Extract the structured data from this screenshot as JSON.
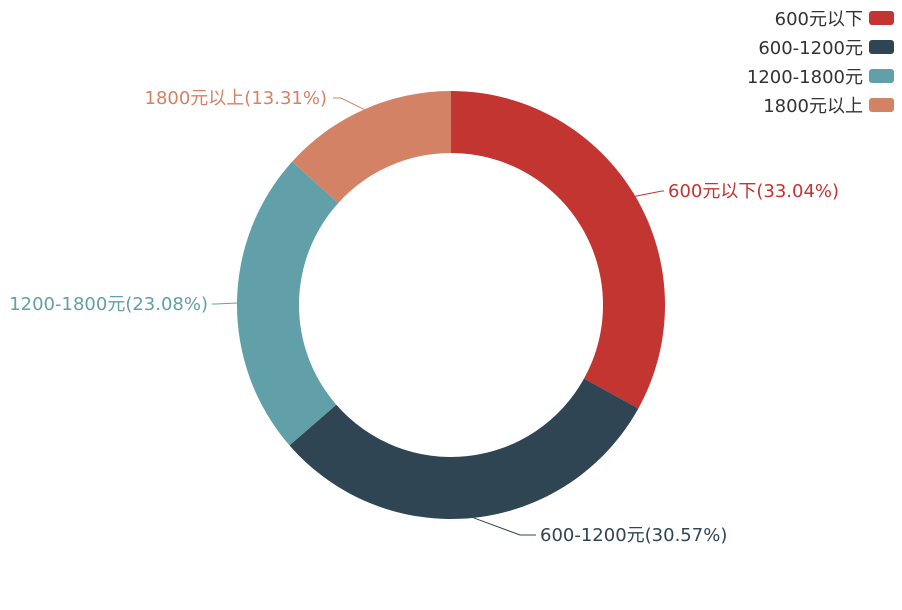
{
  "chart_data": {
    "type": "pie",
    "donut": true,
    "legend_position": "top-right",
    "slices": [
      {
        "name": "600元以下",
        "value": 33.04,
        "label": "600元以下(33.04%)",
        "color": "#c23531"
      },
      {
        "name": "600-1200元",
        "value": 30.57,
        "label": "600-1200元(30.57%)",
        "color": "#2f4554"
      },
      {
        "name": "1200-1800元",
        "value": 23.08,
        "label": "1200-1800元(23.08%)",
        "color": "#61a0a8"
      },
      {
        "name": "1800元以上",
        "value": 13.31,
        "label": "1800元以上(13.31%)",
        "color": "#d48265"
      }
    ]
  }
}
